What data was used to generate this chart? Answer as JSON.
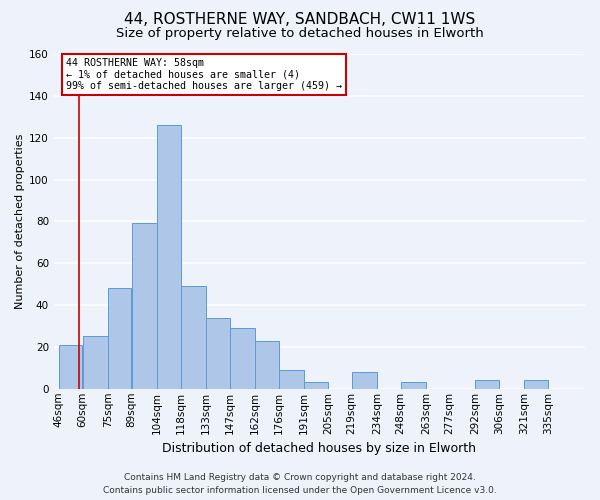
{
  "title": "44, ROSTHERNE WAY, SANDBACH, CW11 1WS",
  "subtitle": "Size of property relative to detached houses in Elworth",
  "xlabel": "Distribution of detached houses by size in Elworth",
  "ylabel": "Number of detached properties",
  "bin_labels": [
    "46sqm",
    "60sqm",
    "75sqm",
    "89sqm",
    "104sqm",
    "118sqm",
    "133sqm",
    "147sqm",
    "162sqm",
    "176sqm",
    "191sqm",
    "205sqm",
    "219sqm",
    "234sqm",
    "248sqm",
    "263sqm",
    "277sqm",
    "292sqm",
    "306sqm",
    "321sqm",
    "335sqm"
  ],
  "bin_edges": [
    46,
    60,
    75,
    89,
    104,
    118,
    133,
    147,
    162,
    176,
    191,
    205,
    219,
    234,
    248,
    263,
    277,
    292,
    306,
    321,
    335,
    349
  ],
  "bar_heights": [
    21,
    25,
    48,
    79,
    126,
    49,
    34,
    29,
    23,
    9,
    3,
    0,
    8,
    0,
    3,
    0,
    0,
    4,
    0,
    4,
    0
  ],
  "bar_color": "#aec6e8",
  "bar_edge_color": "#5b9bd5",
  "annotation_line1": "44 ROSTHERNE WAY: 58sqm",
  "annotation_line2": "← 1% of detached houses are smaller (4)",
  "annotation_line3": "99% of semi-detached houses are larger (459) →",
  "annotation_box_edge_color": "#cc0000",
  "vline_x": 58,
  "vline_color": "#cc0000",
  "ylim": [
    0,
    160
  ],
  "yticks": [
    0,
    20,
    40,
    60,
    80,
    100,
    120,
    140,
    160
  ],
  "footer_line1": "Contains HM Land Registry data © Crown copyright and database right 2024.",
  "footer_line2": "Contains public sector information licensed under the Open Government Licence v3.0.",
  "background_color": "#eef2fa",
  "grid_color": "#ffffff",
  "title_fontsize": 11,
  "subtitle_fontsize": 9.5,
  "xlabel_fontsize": 9,
  "ylabel_fontsize": 8,
  "footer_fontsize": 6.5,
  "tick_fontsize": 7.5
}
